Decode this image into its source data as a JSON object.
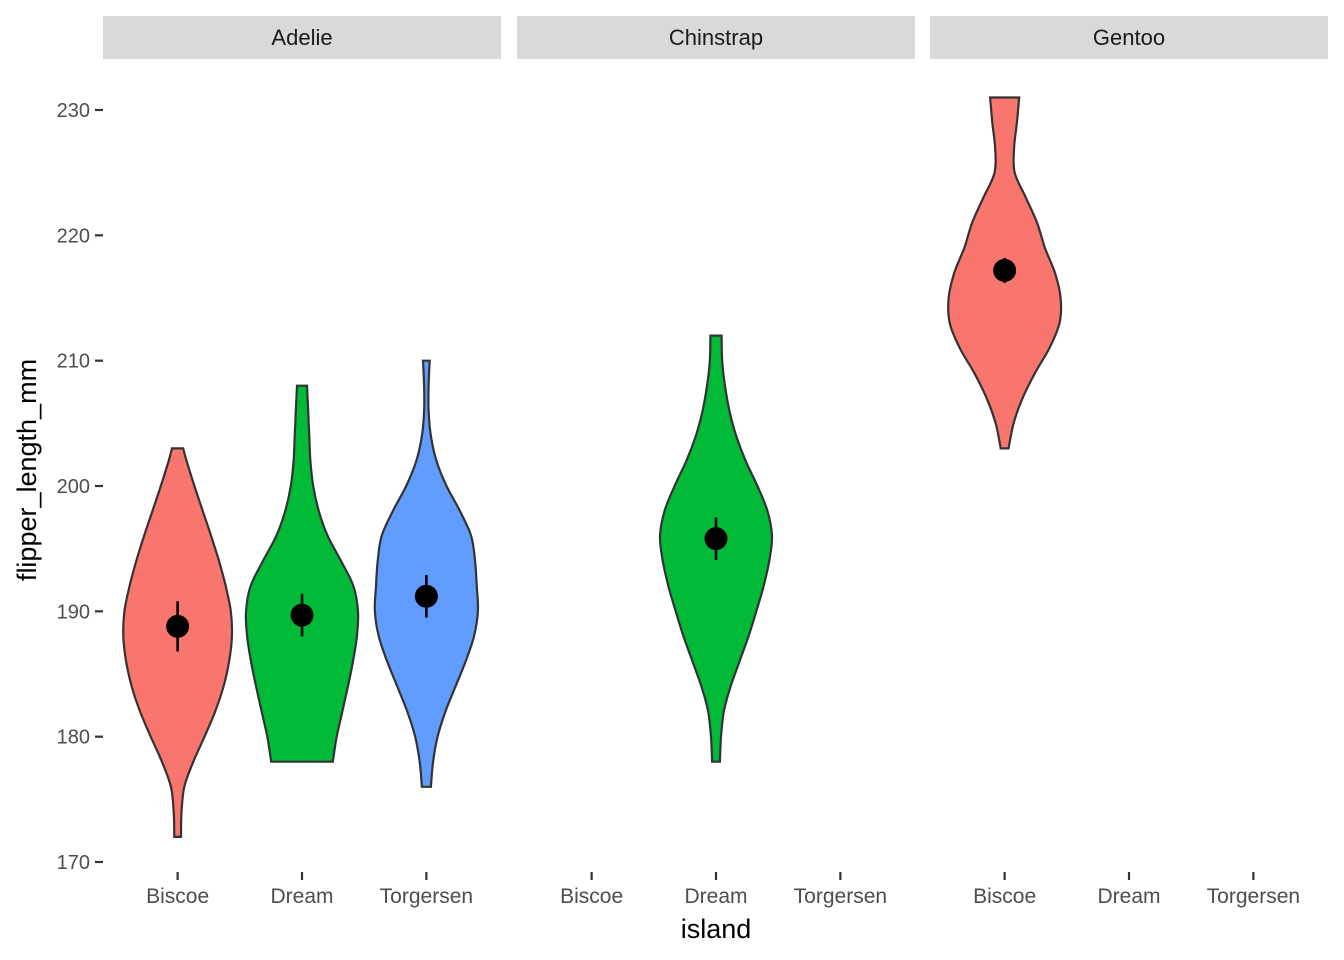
{
  "chart_data": {
    "type": "violin",
    "xlabel": "island",
    "ylabel": "flipper_length_mm",
    "ylim": [
      170,
      230
    ],
    "yticks": [
      170,
      180,
      190,
      200,
      210,
      220,
      230
    ],
    "grid": false,
    "categories": [
      "Biscoe",
      "Dream",
      "Torgersen"
    ],
    "colors": {
      "Biscoe": "#F8766D",
      "Dream": "#00BA38",
      "Torgersen": "#619CFF"
    },
    "facets": [
      {
        "label": "Adelie",
        "violins": [
          {
            "island": "Biscoe",
            "min": 172,
            "max": 203,
            "mean": 188.8,
            "ci_low": 186.8,
            "ci_high": 190.8,
            "profile": [
              [
                172,
                0.06
              ],
              [
                174,
                0.07
              ],
              [
                176,
                0.12
              ],
              [
                178,
                0.28
              ],
              [
                180,
                0.48
              ],
              [
                182,
                0.67
              ],
              [
                184,
                0.82
              ],
              [
                186,
                0.92
              ],
              [
                188,
                0.97
              ],
              [
                190,
                0.95
              ],
              [
                192,
                0.86
              ],
              [
                194,
                0.74
              ],
              [
                196,
                0.6
              ],
              [
                198,
                0.45
              ],
              [
                200,
                0.3
              ],
              [
                202,
                0.16
              ],
              [
                203,
                0.1
              ]
            ]
          },
          {
            "island": "Dream",
            "min": 178,
            "max": 208,
            "mean": 189.7,
            "ci_low": 188.0,
            "ci_high": 191.4,
            "profile": [
              [
                178,
                0.55
              ],
              [
                180,
                0.62
              ],
              [
                182,
                0.72
              ],
              [
                184,
                0.82
              ],
              [
                186,
                0.91
              ],
              [
                188,
                0.98
              ],
              [
                190,
                1.0
              ],
              [
                192,
                0.92
              ],
              [
                194,
                0.7
              ],
              [
                196,
                0.46
              ],
              [
                198,
                0.3
              ],
              [
                200,
                0.2
              ],
              [
                202,
                0.15
              ],
              [
                204,
                0.13
              ],
              [
                206,
                0.11
              ],
              [
                208,
                0.09
              ]
            ]
          },
          {
            "island": "Torgersen",
            "min": 176,
            "max": 210,
            "mean": 191.2,
            "ci_low": 189.5,
            "ci_high": 192.9,
            "profile": [
              [
                176,
                0.08
              ],
              [
                178,
                0.12
              ],
              [
                180,
                0.2
              ],
              [
                182,
                0.34
              ],
              [
                184,
                0.52
              ],
              [
                186,
                0.7
              ],
              [
                188,
                0.85
              ],
              [
                190,
                0.92
              ],
              [
                192,
                0.9
              ],
              [
                194,
                0.87
              ],
              [
                196,
                0.8
              ],
              [
                198,
                0.6
              ],
              [
                200,
                0.36
              ],
              [
                202,
                0.18
              ],
              [
                204,
                0.08
              ],
              [
                206,
                0.04
              ],
              [
                208,
                0.04
              ],
              [
                210,
                0.06
              ]
            ]
          }
        ]
      },
      {
        "label": "Chinstrap",
        "violins": [
          {
            "island": "Dream",
            "min": 178,
            "max": 212,
            "mean": 195.8,
            "ci_low": 194.1,
            "ci_high": 197.5,
            "profile": [
              [
                178,
                0.07
              ],
              [
                180,
                0.09
              ],
              [
                182,
                0.14
              ],
              [
                184,
                0.26
              ],
              [
                186,
                0.42
              ],
              [
                188,
                0.58
              ],
              [
                190,
                0.72
              ],
              [
                192,
                0.85
              ],
              [
                194,
                0.95
              ],
              [
                196,
                1.0
              ],
              [
                198,
                0.92
              ],
              [
                200,
                0.74
              ],
              [
                202,
                0.53
              ],
              [
                204,
                0.36
              ],
              [
                206,
                0.24
              ],
              [
                208,
                0.16
              ],
              [
                210,
                0.11
              ],
              [
                212,
                0.1
              ]
            ]
          }
        ]
      },
      {
        "label": "Gentoo",
        "violins": [
          {
            "island": "Biscoe",
            "min": 203,
            "max": 231,
            "mean": 217.2,
            "ci_low": 216.2,
            "ci_high": 218.2,
            "profile": [
              [
                203,
                0.07
              ],
              [
                205,
                0.16
              ],
              [
                207,
                0.32
              ],
              [
                209,
                0.54
              ],
              [
                211,
                0.8
              ],
              [
                213,
                0.98
              ],
              [
                215,
                1.0
              ],
              [
                217,
                0.9
              ],
              [
                219,
                0.72
              ],
              [
                221,
                0.58
              ],
              [
                223,
                0.38
              ],
              [
                225,
                0.18
              ],
              [
                227,
                0.17
              ],
              [
                229,
                0.22
              ],
              [
                231,
                0.26
              ]
            ]
          }
        ]
      }
    ]
  }
}
